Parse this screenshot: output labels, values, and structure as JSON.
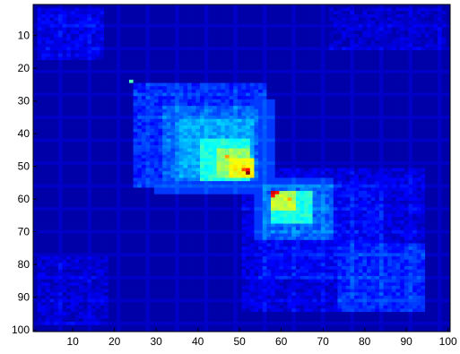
{
  "chart_data": {
    "type": "heatmap",
    "title": "",
    "xlabel": "",
    "ylabel": "",
    "rows": 100,
    "cols": 100,
    "xlim": [
      0.5,
      100.5
    ],
    "ylim": [
      0.5,
      100.5
    ],
    "y_direction": "reverse",
    "x_ticks": [
      10,
      20,
      30,
      40,
      50,
      60,
      70,
      80,
      90,
      100
    ],
    "y_ticks": [
      10,
      20,
      30,
      40,
      50,
      60,
      70,
      80,
      90,
      100
    ],
    "colormap": "jet",
    "value_range": [
      0,
      1
    ],
    "background_value": 0.04,
    "grid": false,
    "blocks": [
      {
        "rows": [
          2,
          17
        ],
        "cols": [
          2,
          17
        ],
        "value": 0.1
      },
      {
        "rows": [
          2,
          14
        ],
        "cols": [
          72,
          99
        ],
        "value": 0.07
      },
      {
        "rows": [
          25,
          56
        ],
        "cols": [
          25,
          56
        ],
        "value": 0.16
      },
      {
        "rows": [
          32,
          54
        ],
        "cols": [
          32,
          54
        ],
        "value": 0.22
      },
      {
        "rows": [
          36,
          53
        ],
        "cols": [
          36,
          53
        ],
        "value": 0.29
      },
      {
        "rows": [
          42,
          54
        ],
        "cols": [
          41,
          52
        ],
        "value": 0.4
      },
      {
        "rows": [
          45,
          53
        ],
        "cols": [
          45,
          52
        ],
        "value": 0.52
      },
      {
        "rows": [
          48,
          53
        ],
        "cols": [
          48,
          53
        ],
        "value": 0.62
      },
      {
        "rows": [
          51,
          94
        ],
        "cols": [
          51,
          94
        ],
        "value": 0.09
      },
      {
        "rows": [
          55,
          84
        ],
        "cols": [
          55,
          84
        ],
        "value": 0.12
      },
      {
        "rows": [
          56,
          72
        ],
        "cols": [
          56,
          72
        ],
        "value": 0.22
      },
      {
        "rows": [
          58,
          67
        ],
        "cols": [
          58,
          67
        ],
        "value": 0.4
      },
      {
        "rows": [
          58,
          63
        ],
        "cols": [
          58,
          63
        ],
        "value": 0.56
      },
      {
        "rows": [
          78,
          98
        ],
        "cols": [
          2,
          18
        ],
        "value": 0.08
      },
      {
        "rows": [
          74,
          94
        ],
        "cols": [
          74,
          94
        ],
        "value": 0.16
      }
    ],
    "cross_bands": [
      {
        "rows": [
          54,
          58
        ],
        "cols": [
          30,
          72
        ],
        "value": 0.18
      },
      {
        "rows": [
          30,
          72
        ],
        "cols": [
          54,
          58
        ],
        "value": 0.18
      }
    ],
    "hotspots": [
      {
        "row": 51,
        "col": 51,
        "value": 0.8
      },
      {
        "row": 51,
        "col": 52,
        "value": 0.86
      },
      {
        "row": 52,
        "col": 52,
        "value": 1.0
      },
      {
        "row": 58,
        "col": 58,
        "value": 0.92
      },
      {
        "row": 58,
        "col": 59,
        "value": 0.86
      },
      {
        "row": 59,
        "col": 58,
        "value": 0.86
      },
      {
        "row": 24,
        "col": 24,
        "value": 0.45
      },
      {
        "row": 47,
        "col": 47,
        "value": 0.72
      },
      {
        "row": 60,
        "col": 62,
        "value": 0.7
      }
    ]
  }
}
